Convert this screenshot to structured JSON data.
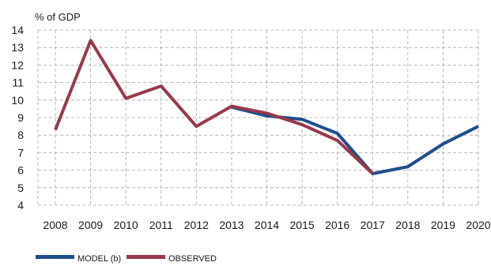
{
  "chart_data": {
    "type": "line",
    "unit_label": "% of GDP",
    "x": [
      "2008",
      "2009",
      "2010",
      "2011",
      "2012",
      "2013",
      "2014",
      "2015",
      "2016",
      "2017",
      "2018",
      "2019",
      "2020"
    ],
    "ylim": [
      4,
      14
    ],
    "yticks": [
      4,
      5,
      6,
      7,
      8,
      9,
      10,
      11,
      12,
      13,
      14
    ],
    "grid": true,
    "legend_position": "bottom-left",
    "series": [
      {
        "name": "MODEL (b)",
        "color": "#1f4e8c",
        "values": [
          null,
          null,
          null,
          null,
          null,
          9.6,
          9.1,
          8.9,
          8.1,
          5.8,
          6.2,
          7.5,
          8.5
        ]
      },
      {
        "name": "OBSERVED",
        "color": "#97394a",
        "values": [
          8.3,
          13.4,
          10.1,
          10.8,
          8.5,
          9.65,
          9.25,
          8.6,
          7.7,
          5.8,
          null,
          null,
          null
        ]
      }
    ]
  }
}
